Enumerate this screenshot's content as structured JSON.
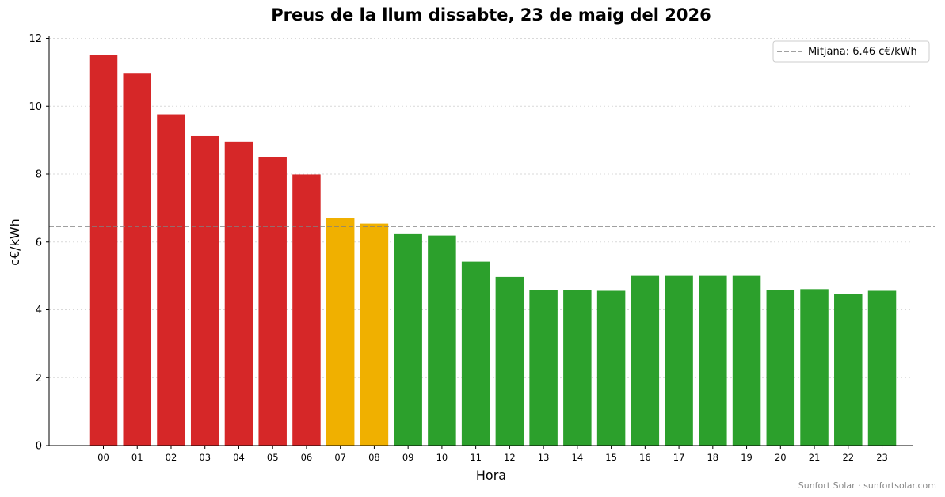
{
  "chart_data": {
    "type": "bar",
    "title": "Preus de la llum dissabte, 23 de maig del 2026",
    "xlabel": "Hora",
    "ylabel": "c€/kWh",
    "ylim": [
      0,
      12
    ],
    "yticks": [
      "0",
      "2",
      "4",
      "6",
      "8",
      "10",
      "12"
    ],
    "categories": [
      "00",
      "01",
      "02",
      "03",
      "04",
      "05",
      "06",
      "07",
      "08",
      "09",
      "10",
      "11",
      "12",
      "13",
      "14",
      "15",
      "16",
      "17",
      "18",
      "19",
      "20",
      "21",
      "22",
      "23"
    ],
    "values": [
      11.5,
      10.98,
      9.76,
      9.12,
      8.96,
      8.5,
      7.99,
      6.7,
      6.54,
      6.23,
      6.19,
      5.42,
      4.97,
      4.58,
      4.58,
      4.56,
      5.0,
      5.0,
      5.0,
      5.0,
      4.58,
      4.61,
      4.46,
      4.56
    ],
    "bar_levels": [
      "high",
      "high",
      "high",
      "high",
      "high",
      "high",
      "high",
      "mid",
      "mid",
      "low",
      "low",
      "low",
      "low",
      "low",
      "low",
      "low",
      "low",
      "low",
      "low",
      "low",
      "low",
      "low",
      "low",
      "low"
    ],
    "average": {
      "value": 6.46,
      "label": "Mitjana: 6.46 c€/kWh"
    },
    "legend_position": "top-right",
    "grid": "horizontal dotted",
    "colors": {
      "high": "#d62728",
      "mid": "#f0b000",
      "low": "#2ca02c",
      "average_line": "#808080",
      "grid": "#d9d9d9"
    }
  },
  "footer": "Sunfort Solar · sunfortsolar.com"
}
